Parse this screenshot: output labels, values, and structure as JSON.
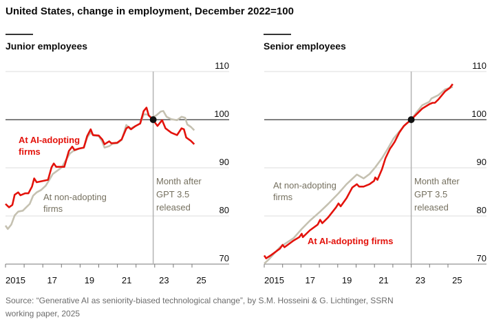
{
  "title": "United States, change in employment, December 2022=100",
  "source": "Source: “Generative AI as seniority-biased technological change”, by S.M. Hosseini & G. Lichtinger, SSRN working paper, 2025",
  "colors": {
    "ai": "#e3120b",
    "non": "#c5c1b1",
    "annotation_grey": "#75705f"
  },
  "chart_data": [
    {
      "type": "line",
      "title": "Junior employees",
      "ylim": [
        70,
        110
      ],
      "yticks": [
        "70",
        "80",
        "90",
        "100",
        "110"
      ],
      "xlim": [
        2015,
        2027
      ],
      "xticks": [
        {
          "year": 2015,
          "label": "2015"
        },
        {
          "year": 2017,
          "label": "17"
        },
        {
          "year": 2019,
          "label": "19"
        },
        {
          "year": 2021,
          "label": "21"
        },
        {
          "year": 2023,
          "label": "23"
        },
        {
          "year": 2025,
          "label": "25"
        }
      ],
      "reference_line": {
        "year": 2022.92,
        "label_lines": [
          "Month after",
          "GPT 3.5",
          "released"
        ]
      },
      "index_point": {
        "year": 2022.92,
        "value": 100
      },
      "series": [
        {
          "name": "At AI-adopting firms",
          "label_lines": [
            "At AI-adopting",
            "firms"
          ],
          "color": "#e3120b",
          "points": [
            [
              2015.0,
              82.5
            ],
            [
              2015.19,
              81.8
            ],
            [
              2015.37,
              82.3
            ],
            [
              2015.49,
              84.4
            ],
            [
              2015.68,
              84.9
            ],
            [
              2015.8,
              84.3
            ],
            [
              2016.05,
              84.7
            ],
            [
              2016.23,
              84.7
            ],
            [
              2016.42,
              86.1
            ],
            [
              2016.54,
              87.8
            ],
            [
              2016.67,
              87.0
            ],
            [
              2017.04,
              87.3
            ],
            [
              2017.28,
              87.5
            ],
            [
              2017.47,
              90.1
            ],
            [
              2017.59,
              90.9
            ],
            [
              2017.72,
              90.2
            ],
            [
              2017.96,
              90.2
            ],
            [
              2018.15,
              90.2
            ],
            [
              2018.4,
              93.5
            ],
            [
              2018.58,
              94.4
            ],
            [
              2018.7,
              93.7
            ],
            [
              2018.95,
              94.0
            ],
            [
              2019.2,
              94.2
            ],
            [
              2019.38,
              96.6
            ],
            [
              2019.57,
              98.0
            ],
            [
              2019.69,
              96.8
            ],
            [
              2020.0,
              96.7
            ],
            [
              2020.19,
              95.9
            ],
            [
              2020.31,
              94.9
            ],
            [
              2020.56,
              95.5
            ],
            [
              2020.68,
              95.1
            ],
            [
              2020.99,
              95.2
            ],
            [
              2021.23,
              95.9
            ],
            [
              2021.48,
              98.2
            ],
            [
              2021.6,
              98.5
            ],
            [
              2021.73,
              98.0
            ],
            [
              2021.98,
              98.7
            ],
            [
              2022.22,
              99.2
            ],
            [
              2022.41,
              101.8
            ],
            [
              2022.56,
              102.5
            ],
            [
              2022.68,
              100.9
            ],
            [
              2022.9,
              100.0
            ],
            [
              2023.15,
              98.7
            ],
            [
              2023.4,
              99.9
            ],
            [
              2023.58,
              98.2
            ],
            [
              2023.89,
              97.3
            ],
            [
              2024.2,
              96.8
            ],
            [
              2024.44,
              98.2
            ],
            [
              2024.57,
              98.0
            ],
            [
              2024.69,
              96.3
            ],
            [
              2024.94,
              95.6
            ],
            [
              2025.12,
              94.9
            ]
          ]
        },
        {
          "name": "At non-adopting firms",
          "label_lines": [
            "At non-adopting",
            "firms"
          ],
          "color": "#c5c1b1",
          "points": [
            [
              2015.0,
              78.0
            ],
            [
              2015.12,
              77.3
            ],
            [
              2015.31,
              78.2
            ],
            [
              2015.49,
              80.1
            ],
            [
              2015.68,
              80.9
            ],
            [
              2015.93,
              81.1
            ],
            [
              2016.11,
              81.8
            ],
            [
              2016.3,
              82.5
            ],
            [
              2016.48,
              84.2
            ],
            [
              2016.67,
              84.9
            ],
            [
              2016.91,
              85.4
            ],
            [
              2017.16,
              86.3
            ],
            [
              2017.35,
              87.5
            ],
            [
              2017.53,
              88.7
            ],
            [
              2017.78,
              89.4
            ],
            [
              2018.02,
              90.1
            ],
            [
              2018.27,
              91.8
            ],
            [
              2018.46,
              93.0
            ],
            [
              2018.64,
              93.5
            ],
            [
              2018.95,
              94.0
            ],
            [
              2019.2,
              94.2
            ],
            [
              2019.38,
              96.3
            ],
            [
              2019.57,
              97.3
            ],
            [
              2019.75,
              96.7
            ],
            [
              2020.0,
              96.6
            ],
            [
              2020.19,
              95.4
            ],
            [
              2020.31,
              94.2
            ],
            [
              2020.56,
              94.5
            ],
            [
              2020.74,
              95.0
            ],
            [
              2020.99,
              95.1
            ],
            [
              2021.23,
              95.8
            ],
            [
              2021.48,
              98.9
            ],
            [
              2021.67,
              98.1
            ],
            [
              2021.98,
              98.7
            ],
            [
              2022.22,
              99.2
            ],
            [
              2022.41,
              101.1
            ],
            [
              2022.59,
              101.1
            ],
            [
              2022.84,
              100.4
            ],
            [
              2023.09,
              100.9
            ],
            [
              2023.33,
              101.7
            ],
            [
              2023.46,
              101.8
            ],
            [
              2023.64,
              100.6
            ],
            [
              2023.89,
              100.1
            ],
            [
              2024.2,
              99.9
            ],
            [
              2024.44,
              100.6
            ],
            [
              2024.63,
              100.4
            ],
            [
              2024.75,
              99.0
            ],
            [
              2024.94,
              98.5
            ],
            [
              2025.12,
              97.8
            ]
          ]
        }
      ]
    },
    {
      "type": "line",
      "title": "Senior employees",
      "ylim": [
        70,
        110
      ],
      "yticks": [
        "70",
        "80",
        "90",
        "100",
        "110"
      ],
      "xlim": [
        2015,
        2027
      ],
      "xticks": [
        {
          "year": 2015,
          "label": "2015"
        },
        {
          "year": 2017,
          "label": "17"
        },
        {
          "year": 2019,
          "label": "19"
        },
        {
          "year": 2021,
          "label": "21"
        },
        {
          "year": 2023,
          "label": "23"
        },
        {
          "year": 2025,
          "label": "25"
        }
      ],
      "reference_line": {
        "year": 2023.0,
        "label_lines": [
          "Month after",
          "GPT 3.5",
          "released"
        ]
      },
      "index_point": {
        "year": 2023.0,
        "value": 100
      },
      "series": [
        {
          "name": "At AI-adopting firms",
          "label_lines": [
            "At AI-adopting firms"
          ],
          "color": "#e3120b",
          "points": [
            [
              2015.0,
              71.8
            ],
            [
              2015.1,
              71.2
            ],
            [
              2015.35,
              71.8
            ],
            [
              2015.85,
              73.2
            ],
            [
              2016.0,
              74.0
            ],
            [
              2016.1,
              73.5
            ],
            [
              2016.6,
              74.9
            ],
            [
              2016.91,
              75.6
            ],
            [
              2017.04,
              76.3
            ],
            [
              2017.1,
              75.6
            ],
            [
              2017.48,
              77.0
            ],
            [
              2017.91,
              78.2
            ],
            [
              2018.04,
              79.2
            ],
            [
              2018.16,
              78.5
            ],
            [
              2018.48,
              79.7
            ],
            [
              2018.91,
              81.8
            ],
            [
              2019.04,
              82.6
            ],
            [
              2019.16,
              82.0
            ],
            [
              2019.48,
              83.7
            ],
            [
              2019.79,
              85.9
            ],
            [
              2020.04,
              86.6
            ],
            [
              2020.16,
              86.1
            ],
            [
              2020.41,
              86.1
            ],
            [
              2020.73,
              86.6
            ],
            [
              2020.98,
              87.3
            ],
            [
              2021.04,
              88.0
            ],
            [
              2021.16,
              87.5
            ],
            [
              2021.41,
              89.7
            ],
            [
              2021.6,
              92.0
            ],
            [
              2021.85,
              94.0
            ],
            [
              2021.98,
              94.7
            ],
            [
              2022.1,
              95.4
            ],
            [
              2022.35,
              97.3
            ],
            [
              2022.6,
              98.7
            ],
            [
              2023.0,
              100.0
            ],
            [
              2023.23,
              100.9
            ],
            [
              2023.6,
              102.3
            ],
            [
              2023.98,
              103.2
            ],
            [
              2024.16,
              103.5
            ],
            [
              2024.29,
              103.5
            ],
            [
              2024.48,
              104.2
            ],
            [
              2024.85,
              105.9
            ],
            [
              2025.1,
              106.6
            ],
            [
              2025.26,
              107.4
            ]
          ]
        },
        {
          "name": "At non-adopting firms",
          "label_lines": [
            "At non-adopting",
            "firms"
          ],
          "color": "#c5c1b1",
          "points": [
            [
              2015.0,
              70.1
            ],
            [
              2015.23,
              70.9
            ],
            [
              2015.85,
              73.5
            ],
            [
              2016.6,
              75.4
            ],
            [
              2017.04,
              77.3
            ],
            [
              2017.48,
              79.0
            ],
            [
              2018.04,
              80.9
            ],
            [
              2018.48,
              82.5
            ],
            [
              2019.04,
              84.7
            ],
            [
              2019.48,
              86.6
            ],
            [
              2020.04,
              88.6
            ],
            [
              2020.41,
              87.8
            ],
            [
              2020.73,
              88.7
            ],
            [
              2021.04,
              90.1
            ],
            [
              2021.41,
              92.0
            ],
            [
              2021.73,
              94.0
            ],
            [
              2022.04,
              96.1
            ],
            [
              2022.35,
              97.5
            ],
            [
              2022.73,
              99.2
            ],
            [
              2023.0,
              100.0
            ],
            [
              2023.23,
              101.2
            ],
            [
              2023.6,
              103.0
            ],
            [
              2023.98,
              103.7
            ],
            [
              2024.1,
              104.4
            ],
            [
              2024.48,
              105.1
            ],
            [
              2024.85,
              106.3
            ],
            [
              2025.26,
              106.8
            ]
          ]
        }
      ]
    }
  ]
}
